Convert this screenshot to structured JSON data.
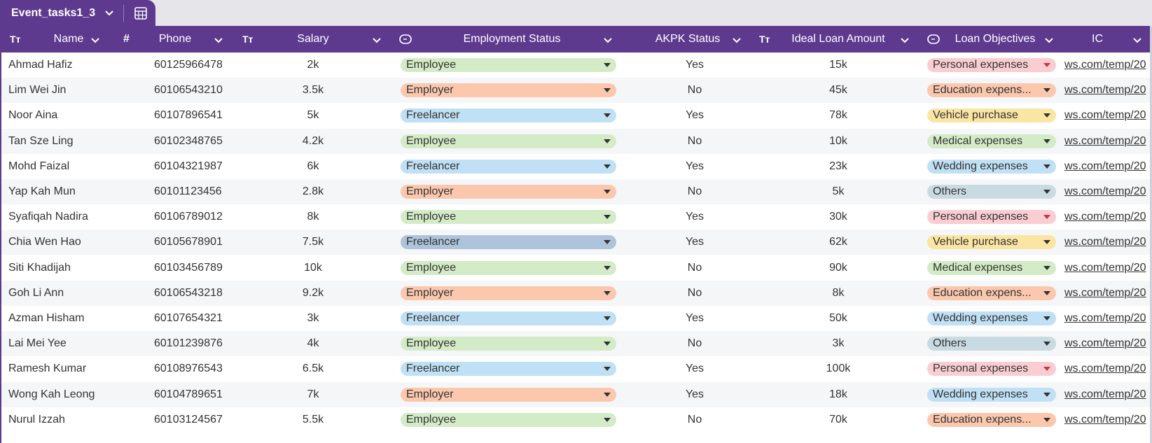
{
  "sheet": {
    "name": "Event_tasks1_3",
    "tab_bg": "#5e3a8f"
  },
  "headers": [
    {
      "key": "name",
      "label": "Name",
      "icon": "Tт"
    },
    {
      "key": "phone",
      "label": "Phone",
      "icon": "#"
    },
    {
      "key": "salary",
      "label": "Salary",
      "icon": "Tт"
    },
    {
      "key": "employment",
      "label": "Employment Status",
      "icon": "select-icon"
    },
    {
      "key": "akpk",
      "label": "AKPK Status",
      "icon": ""
    },
    {
      "key": "ideal",
      "label": "Ideal Loan Amount",
      "icon": "Tт"
    },
    {
      "key": "loan",
      "label": "Loan Objectives",
      "icon": "select-icon"
    },
    {
      "key": "ic",
      "label": "IC",
      "icon": ""
    }
  ],
  "pill_colors": {
    "Employee": "#d3ecc7",
    "Employer": "#fbc8ae",
    "Freelancer": "#bfe0f5",
    "Freelancer-selected": "#adc4dc",
    "Personal expenses": "#f9cdd1",
    "Education expenses": "#fbc8ae",
    "Vehicle purchase": "#fbe5a3",
    "Medical expenses": "#d3ecc7",
    "Wedding expenses": "#bfe0f5",
    "Others": "#c9dbe2"
  },
  "rows": [
    {
      "name": "Ahmad Hafiz",
      "phone": "60125966478",
      "salary": "2k",
      "employment": "Employee",
      "akpk": "Yes",
      "ideal": "15k",
      "loan": "Personal expenses",
      "ic": "ws.com/temp/20"
    },
    {
      "name": "Lim Wei Jin",
      "phone": "60106543210",
      "salary": "3.5k",
      "employment": "Employer",
      "akpk": "No",
      "ideal": "45k",
      "loan": "Education expenses",
      "loan_display": "Education expens...",
      "ic": "ws.com/temp/20"
    },
    {
      "name": "Noor Aina",
      "phone": "60107896541",
      "salary": "5k",
      "employment": "Freelancer",
      "akpk": "Yes",
      "ideal": "78k",
      "loan": "Vehicle purchase",
      "ic": "ws.com/temp/20"
    },
    {
      "name": "Tan Sze Ling",
      "phone": "60102348765",
      "salary": "4.2k",
      "employment": "Employee",
      "akpk": "No",
      "ideal": "10k",
      "loan": "Medical expenses",
      "ic": "ws.com/temp/20"
    },
    {
      "name": "Mohd Faizal",
      "phone": "60104321987",
      "salary": "6k",
      "employment": "Freelancer",
      "akpk": "Yes",
      "ideal": "23k",
      "loan": "Wedding expenses",
      "ic": "ws.com/temp/20"
    },
    {
      "name": "Yap Kah Mun",
      "phone": "60101123456",
      "salary": "2.8k",
      "employment": "Employer",
      "akpk": "No",
      "ideal": "5k",
      "loan": "Others",
      "ic": "ws.com/temp/20"
    },
    {
      "name": "Syafiqah Nadira",
      "phone": "60106789012",
      "salary": "8k",
      "employment": "Employee",
      "akpk": "Yes",
      "ideal": "30k",
      "loan": "Personal expenses",
      "ic": "ws.com/temp/20"
    },
    {
      "name": "Chia Wen Hao",
      "phone": "60105678901",
      "salary": "7.5k",
      "employment": "Freelancer",
      "employment_selected": true,
      "akpk": "Yes",
      "ideal": "62k",
      "loan": "Vehicle purchase",
      "ic": "ws.com/temp/20"
    },
    {
      "name": "Siti Khadijah",
      "phone": "60103456789",
      "salary": "10k",
      "employment": "Employee",
      "akpk": "No",
      "ideal": "90k",
      "loan": "Medical expenses",
      "ic": "ws.com/temp/20"
    },
    {
      "name": "Goh Li Ann",
      "phone": "60106543218",
      "salary": "9.2k",
      "employment": "Employer",
      "akpk": "No",
      "ideal": "8k",
      "loan": "Education expenses",
      "loan_display": "Education expens...",
      "ic": "ws.com/temp/20"
    },
    {
      "name": "Azman Hisham",
      "phone": "60107654321",
      "salary": "3k",
      "employment": "Freelancer",
      "akpk": "Yes",
      "ideal": "50k",
      "loan": "Wedding expenses",
      "ic": "ws.com/temp/20"
    },
    {
      "name": "Lai Mei Yee",
      "phone": "60101239876",
      "salary": "4k",
      "employment": "Employee",
      "akpk": "No",
      "ideal": "3k",
      "loan": "Others",
      "ic": "ws.com/temp/20"
    },
    {
      "name": "Ramesh Kumar",
      "phone": "60108976543",
      "salary": "6.5k",
      "employment": "Freelancer",
      "akpk": "Yes",
      "ideal": "100k",
      "loan": "Personal expenses",
      "ic": "ws.com/temp/20"
    },
    {
      "name": "Wong Kah Leong",
      "phone": "60104789651",
      "salary": "7k",
      "employment": "Employer",
      "akpk": "Yes",
      "ideal": "18k",
      "loan": "Wedding expenses",
      "ic": "ws.com/temp/20"
    },
    {
      "name": "Nurul Izzah",
      "phone": "60103124567",
      "salary": "5.5k",
      "employment": "Employee",
      "akpk": "No",
      "ideal": "70k",
      "loan": "Education expenses",
      "loan_display": "Education expens...",
      "ic": "ws.com/temp/20"
    }
  ]
}
